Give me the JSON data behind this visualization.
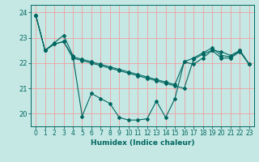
{
  "xlabel": "Humidex (Indice chaleur)",
  "background_color": "#c5e8e4",
  "line_color": "#006660",
  "grid_color": "#f0a0a0",
  "xlim": [
    -0.5,
    23.5
  ],
  "ylim": [
    19.5,
    24.3
  ],
  "yticks": [
    20,
    21,
    22,
    23,
    24
  ],
  "xticks": [
    0,
    1,
    2,
    3,
    4,
    5,
    6,
    7,
    8,
    9,
    10,
    11,
    12,
    13,
    14,
    15,
    16,
    17,
    18,
    19,
    20,
    21,
    22,
    23
  ],
  "s1": [
    23.9,
    22.5,
    22.8,
    23.1,
    22.3,
    19.9,
    20.8,
    20.6,
    20.4,
    19.85,
    19.75,
    19.75,
    19.8,
    20.5,
    19.85,
    20.6,
    22.05,
    21.95,
    22.2,
    22.5,
    22.45,
    22.3,
    22.5,
    21.95
  ],
  "s2": [
    23.9,
    22.5,
    22.75,
    22.85,
    22.25,
    22.15,
    22.05,
    21.95,
    21.85,
    21.75,
    21.65,
    21.55,
    21.45,
    21.35,
    21.25,
    21.15,
    22.05,
    22.2,
    22.4,
    22.6,
    22.3,
    22.25,
    22.5,
    21.95
  ],
  "s3": [
    23.9,
    22.5,
    22.75,
    22.85,
    22.2,
    22.1,
    22.0,
    21.9,
    21.8,
    21.7,
    21.6,
    21.5,
    21.4,
    21.3,
    21.2,
    21.1,
    21.0,
    22.15,
    22.35,
    22.5,
    22.2,
    22.2,
    22.45,
    21.95
  ],
  "tick_fontsize": 5.5,
  "xlabel_fontsize": 6.5,
  "ytick_fontsize": 6.0
}
